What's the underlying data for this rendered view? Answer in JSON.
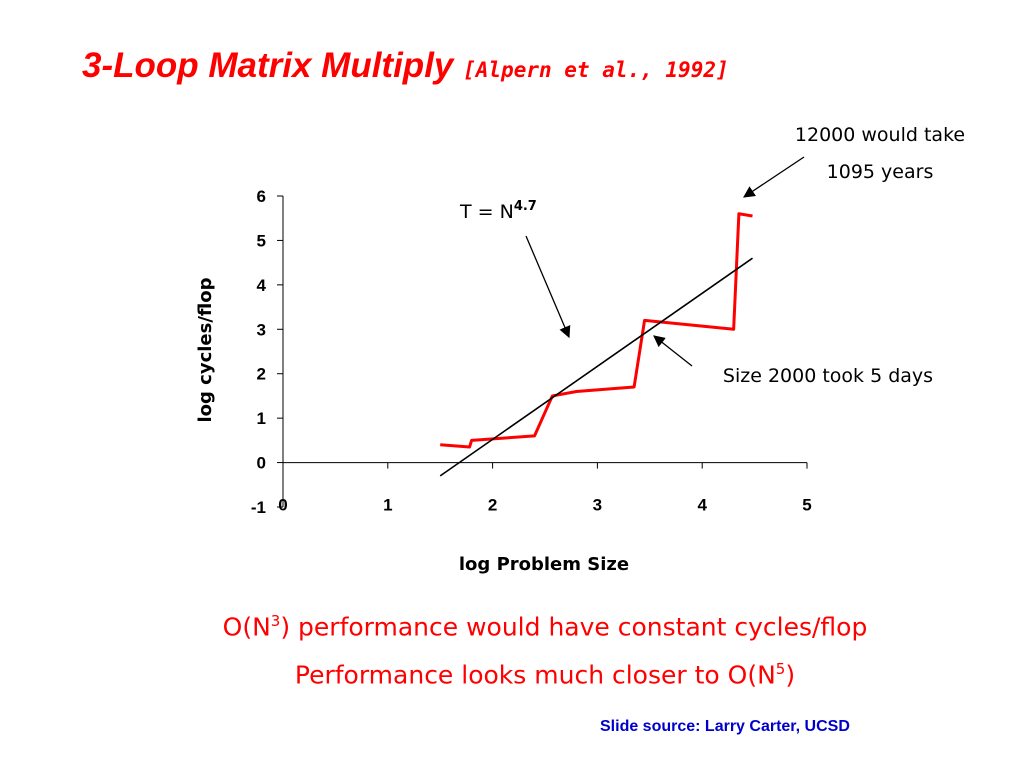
{
  "slide": {
    "title": "3-Loop Matrix Multiply",
    "citation": "[Alpern et al., 1992]",
    "line1_a": "O(N",
    "line1_sup": "3",
    "line1_b": ") performance would have constant cycles/flop",
    "line2_a": "Performance looks much closer to O(N",
    "line2_sup": "5",
    "line2_b": ")",
    "source": "Slide source: Larry Carter, UCSD"
  },
  "chart_data": {
    "type": "line",
    "title": "",
    "xlabel": "log Problem Size",
    "ylabel": "log cycles/flop",
    "xlim": [
      0,
      5
    ],
    "ylim": [
      -1,
      6
    ],
    "x_ticks": [
      "0",
      "1",
      "2",
      "3",
      "4",
      "5"
    ],
    "y_ticks": [
      "-1",
      "0",
      "1",
      "2",
      "3",
      "4",
      "5",
      "6"
    ],
    "series": [
      {
        "color": "#ff0000",
        "x": [
          1.5,
          1.78,
          1.8,
          2.4,
          2.57,
          2.8,
          3.35,
          3.45,
          4.3,
          4.35,
          4.48
        ],
        "y": [
          0.4,
          0.35,
          0.5,
          0.6,
          1.5,
          1.6,
          1.7,
          3.2,
          3.0,
          5.6,
          5.55
        ]
      },
      {
        "color": "#000000",
        "x": [
          1.5,
          4.48
        ],
        "y": [
          -0.3,
          4.6
        ]
      }
    ],
    "annotations": {
      "fit_label": "T = N",
      "fit_exp": "4.7",
      "top_line1": "12000 would take",
      "top_line2": "1095 years",
      "mid": "Size 2000 took 5 days"
    }
  }
}
